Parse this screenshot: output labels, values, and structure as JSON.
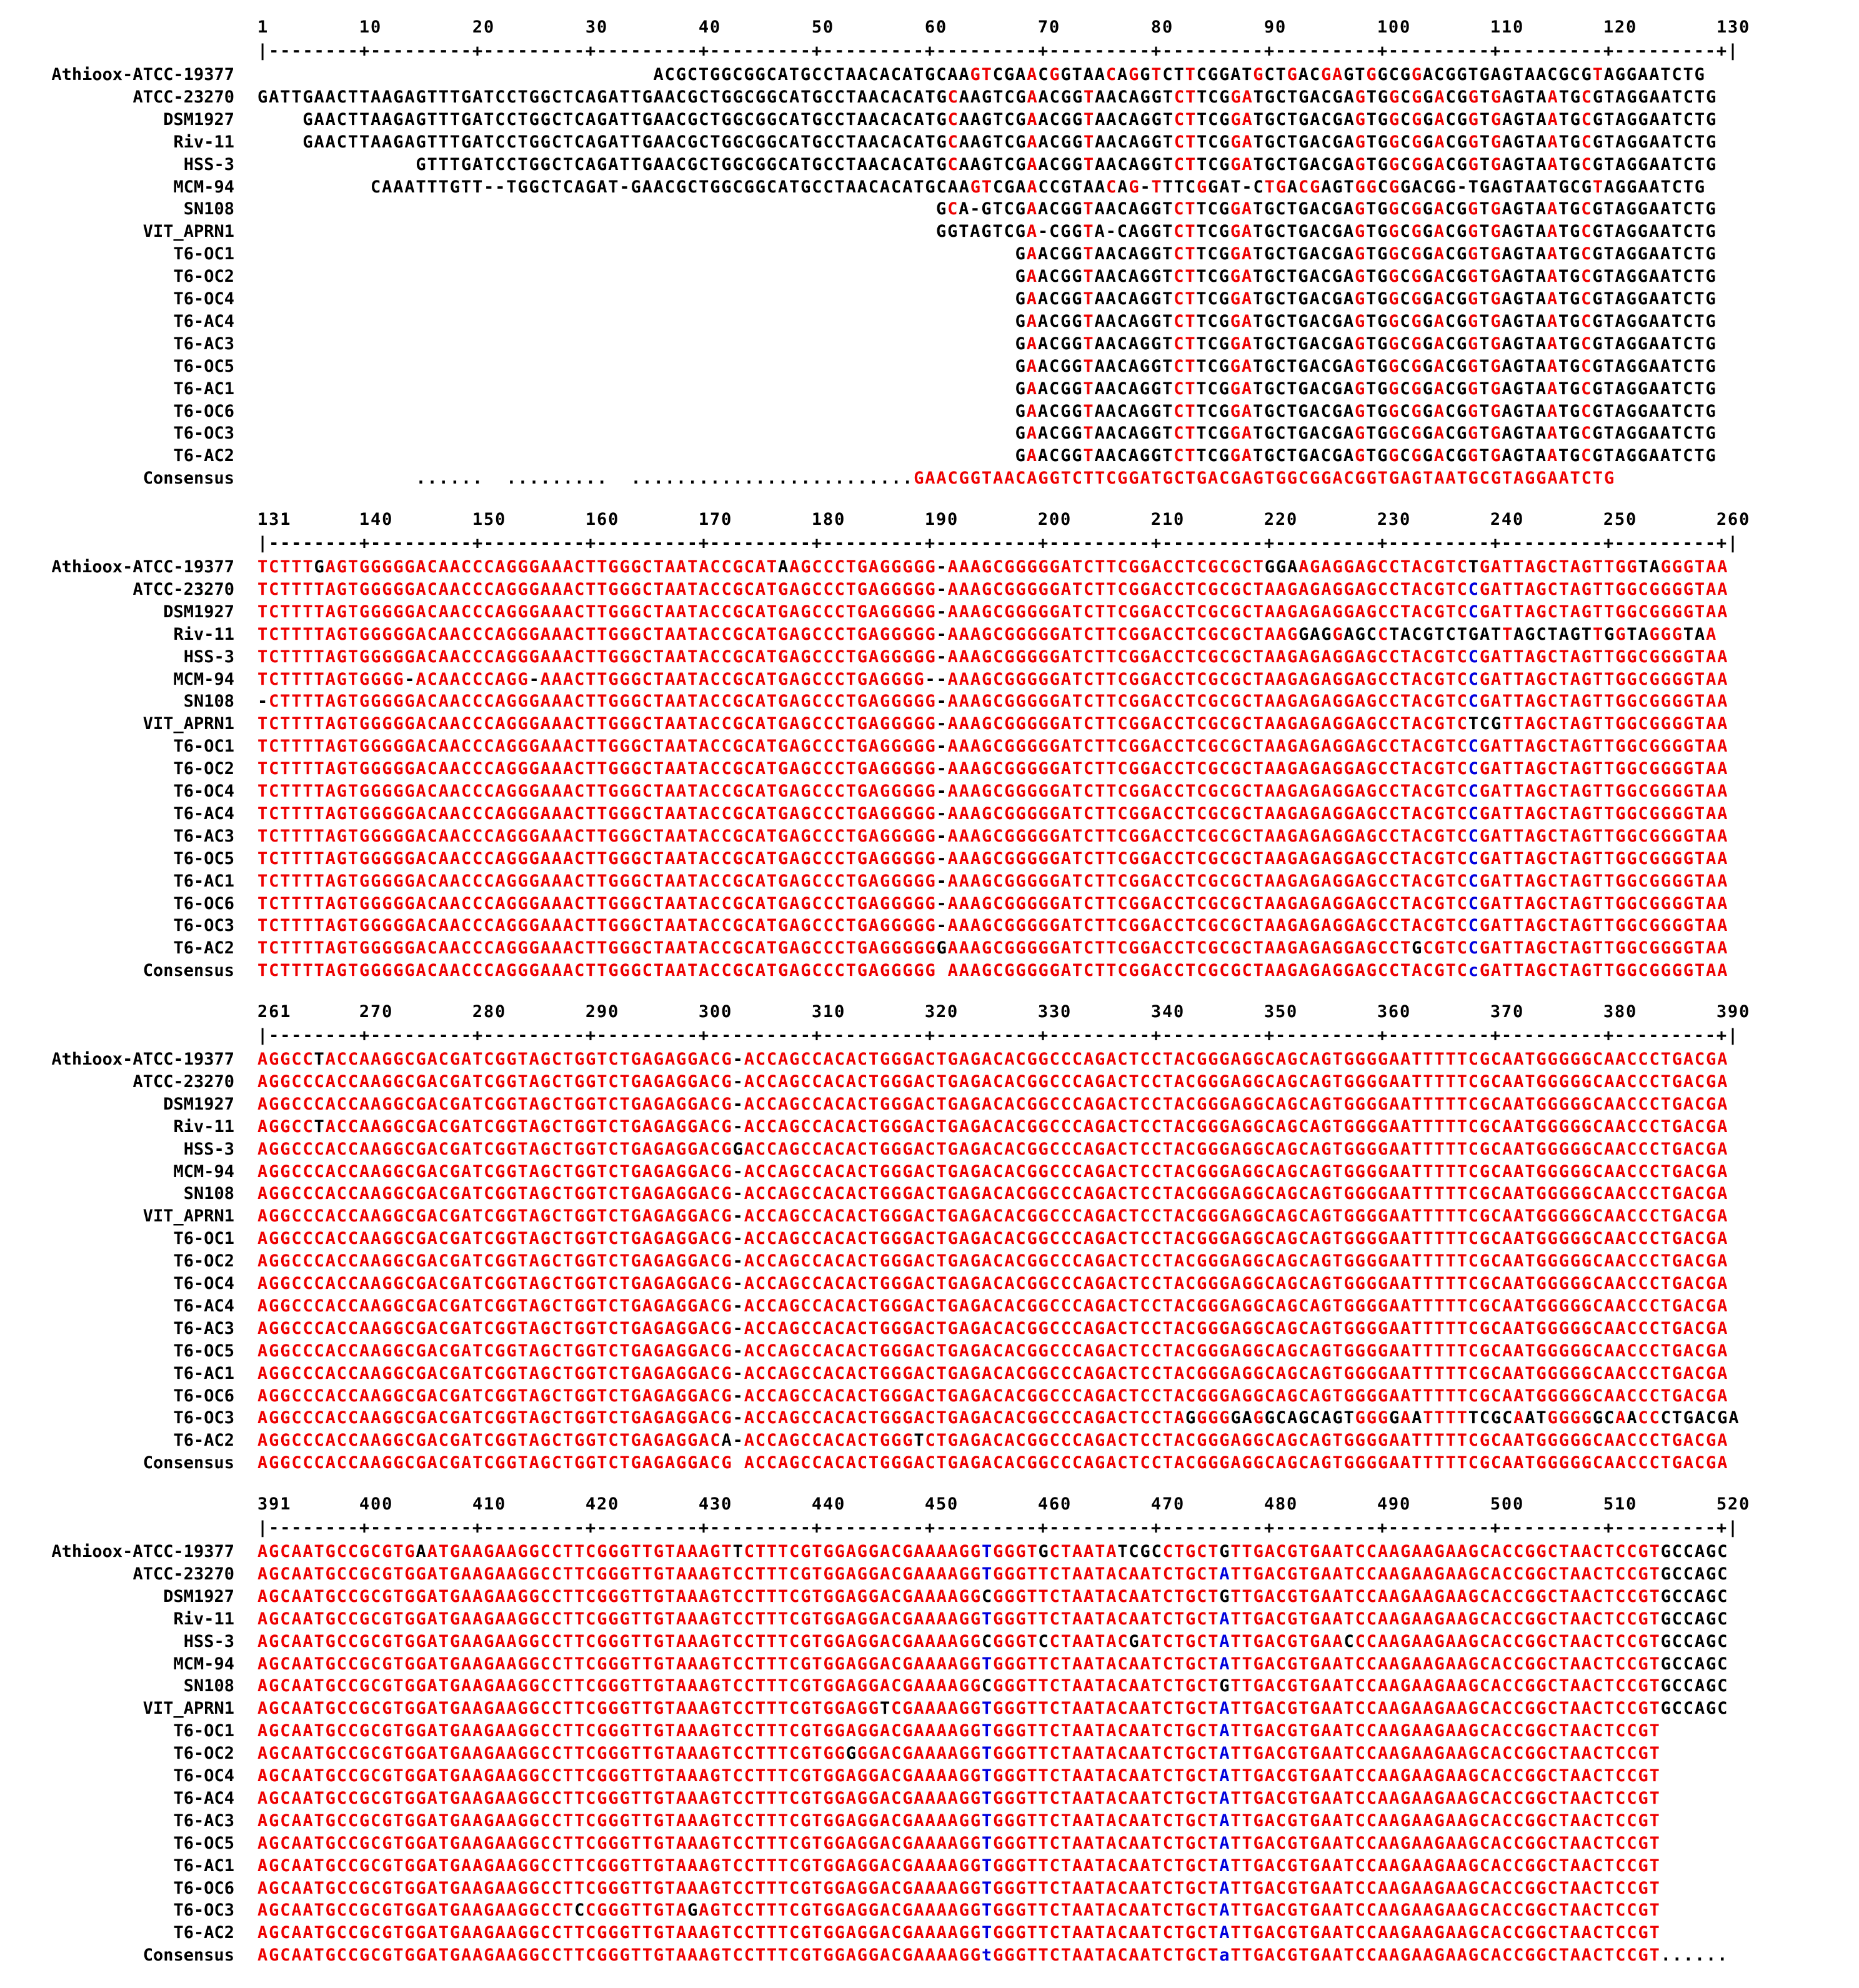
{
  "colors": {
    "high_consensus": "#ee0000",
    "low_consensus": "#0000dd",
    "neutral": "#000000"
  },
  "alignment": {
    "blocks": [
      {
        "ruler_numbers": "1        10        20        30        40        50        60        70        80        90        100       110       120       130",
        "ruler_line": "|--------+---------+---------+---------+---------+---------+---------+---------+---------+---------+---------+---------+---------+|",
        "rows": [
          {
            "name": "Athioox-ATCC-19377",
            "seq": "                                   ACGCTGGCGGCATGCCTAACACATGCAAGTCGAACGGTAACAGGTCTTCGGATGCTGACGAGTGGCGGACGGTGAGTAACGCGTAGGAATCTG"
          },
          {
            "name": "ATCC-23270",
            "seq": "GATTGAACTTAAGAGTTTGATCCTGGCTCAGATTGAACGCTGGCGGCATGCCTAACACATGCAAGTCGAACGGTAACAGGTCTTCGGATGCTGACGAGTGGCGGACGGTGAGTAATGCGTAGGAATCTG"
          },
          {
            "name": "DSM1927",
            "seq": "    GAACTTAAGAGTTTGATCCTGGCTCAGATTGAACGCTGGCGGCATGCCTAACACATGCAAGTCGAACGGTAACAGGTCTTCGGATGCTGACGAGTGGCGGACGGTGAGTAATGCGTAGGAATCTG"
          },
          {
            "name": "Riv-11",
            "seq": "    GAACTTAAGAGTTTGATCCTGGCTCAGATTGAACGCTGGCGGCATGCCTAACACATGCAAGTCGAACGGTAACAGGTCTTCGGATGCTGACGAGTGGCGGACGGTGAGTAATGCGTAGGAATCTG"
          },
          {
            "name": "HSS-3",
            "seq": "              GTTTGATCCTGGCTCAGATTGAACGCTGGCGGCATGCCTAACACATGCAAGTCGAACGGTAACAGGTCTTCGGATGCTGACGAGTGGCGGACGGTGAGTAATGCGTAGGAATCTG"
          },
          {
            "name": "MCM-94",
            "seq": "          CAAATTTGTT--TGGCTCAGAT-GAACGCTGGCGGCATGCCTAACACATGCAAGTCGAACCGTAACAG-TTTCGGAT-CTGACGAGTGGCGGACGG-TGAGTAATGCGTAGGAATCTG"
          },
          {
            "name": "SN108",
            "seq": "                                                            GCA-GTCGAACGGTAACAGGTCTTCGGATGCTGACGAGTGGCGGACGGTGAGTAATGCGTAGGAATCTG"
          },
          {
            "name": "VIT_APRN1",
            "seq": "                                                            GGTAGTCGA-CGGTA-CAGGTCTTCGGATGCTGACGAGTGGCGGACGGTGAGTAATGCGTAGGAATCTG"
          },
          {
            "name": "T6-OC1",
            "seq": "                                                                   GAACGGTAACAGGTCTTCGGATGCTGACGAGTGGCGGACGGTGAGTAATGCGTAGGAATCTG"
          },
          {
            "name": "T6-OC2",
            "seq": "                                                                   GAACGGTAACAGGTCTTCGGATGCTGACGAGTGGCGGACGGTGAGTAATGCGTAGGAATCTG"
          },
          {
            "name": "T6-OC4",
            "seq": "                                                                   GAACGGTAACAGGTCTTCGGATGCTGACGAGTGGCGGACGGTGAGTAATGCGTAGGAATCTG"
          },
          {
            "name": "T6-AC4",
            "seq": "                                                                   GAACGGTAACAGGTCTTCGGATGCTGACGAGTGGCGGACGGTGAGTAATGCGTAGGAATCTG"
          },
          {
            "name": "T6-AC3",
            "seq": "                                                                   GAACGGTAACAGGTCTTCGGATGCTGACGAGTGGCGGACGGTGAGTAATGCGTAGGAATCTG"
          },
          {
            "name": "T6-OC5",
            "seq": "                                                                   GAACGGTAACAGGTCTTCGGATGCTGACGAGTGGCGGACGGTGAGTAATGCGTAGGAATCTG"
          },
          {
            "name": "T6-AC1",
            "seq": "                                                                   GAACGGTAACAGGTCTTCGGATGCTGACGAGTGGCGGACGGTGAGTAATGCGTAGGAATCTG"
          },
          {
            "name": "T6-OC6",
            "seq": "                                                                   GAACGGTAACAGGTCTTCGGATGCTGACGAGTGGCGGACGGTGAGTAATGCGTAGGAATCTG"
          },
          {
            "name": "T6-OC3",
            "seq": "                                                                   GAACGGTAACAGGTCTTCGGATGCTGACGAGTGGCGGACGGTGAGTAATGCGTAGGAATCTG"
          },
          {
            "name": "T6-AC2",
            "seq": "                                                                   GAACGGTAACAGGTCTTCGGATGCTGACGAGTGGCGGACGGTGAGTAATGCGTAGGAATCTG"
          },
          {
            "name": "Consensus",
            "seq": "              ......  .........  .........................GAACGGTAACAGGTCTTCGGATGCTGACGAGTGGCGGACGGTGAGTAATGCGTAGGAATCTG"
          }
        ]
      },
      {
        "ruler_numbers": "131      140       150       160       170       180       190       200       210       220       230       240       250       260",
        "ruler_line": "|--------+---------+---------+---------+---------+---------+---------+---------+---------+---------+---------+---------+---------+|",
        "rows": [
          {
            "name": "Athioox-ATCC-19377",
            "seq": "TCTTTGAGTGGGGGACAACCCAGGGAAACTTGGGCTAATACCGCATAAGCCCTGAGGGGG-AAAGCGGGGGATCTTCGGACCTCGCGCTGGAAGAGGAGCCTACGTCTGATTAGCTAGTTGGTAGGGTAA"
          },
          {
            "name": "ATCC-23270",
            "seq": "TCTTTTAGTGGGGGACAACCCAGGGAAACTTGGGCTAATACCGCATGAGCCCTGAGGGGG-AAAGCGGGGGATCTTCGGACCTCGCGCTAAGAGAGGAGCCTACGTCCGATTAGCTAGTTGGCGGGGTAA"
          },
          {
            "name": "DSM1927",
            "seq": "TCTTTTAGTGGGGGACAACCCAGGGAAACTTGGGCTAATACCGCATGAGCCCTGAGGGGG-AAAGCGGGGGATCTTCGGACCTCGCGCTAAGAGAGGAGCCTACGTCCGATTAGCTAGTTGGCGGGGTAA"
          },
          {
            "name": "Riv-11",
            "seq": "TCTTTTAGTGGGGGACAACCCAGGGAAACTTGGGCTAATACCGCATGAGCCCTGAGGGGG-AAAGCGGGGGATCTTCGGACCTCGCGCTAAGGAGGAGCCTACGTCTGATTAGCTAGTTGGTAGGGTAA"
          },
          {
            "name": "HSS-3",
            "seq": "TCTTTTAGTGGGGGACAACCCAGGGAAACTTGGGCTAATACCGCATGAGCCCTGAGGGGG-AAAGCGGGGGATCTTCGGACCTCGCGCTAAGAGAGGAGCCTACGTCCGATTAGCTAGTTGGCGGGGTAA"
          },
          {
            "name": "MCM-94",
            "seq": "TCTTTTAGTGGGG-ACAACCCAGG-AAACTTGGGCTAATACCGCATGAGCCCTGAGGGG--AAAGCGGGGGATCTTCGGACCTCGCGCTAAGAGAGGAGCCTACGTCCGATTAGCTAGTTGGCGGGGTAA"
          },
          {
            "name": "SN108",
            "seq": "-CTTTTAGTGGGGGACAACCCAGGGAAACTTGGGCTAATACCGCATGAGCCCTGAGGGGG-AAAGCGGGGGATCTTCGGACCTCGCGCTAAGAGAGGAGCCTACGTCCGATTAGCTAGTTGGCGGGGTAA"
          },
          {
            "name": "VIT_APRN1",
            "seq": "TCTTTTAGTGGGGGACAACCCAGGGAAACTTGGGCTAATACCGCATGAGCCCTGAGGGGG-AAAGCGGGGGATCTTCGGACCTCGCGCTAAGAGAGGAGCCTACGTCTCGTTAGCTAGTTGGCGGGGTAA"
          },
          {
            "name": "T6-OC1",
            "seq": "TCTTTTAGTGGGGGACAACCCAGGGAAACTTGGGCTAATACCGCATGAGCCCTGAGGGGG-AAAGCGGGGGATCTTCGGACCTCGCGCTAAGAGAGGAGCCTACGTCCGATTAGCTAGTTGGCGGGGTAA"
          },
          {
            "name": "T6-OC2",
            "seq": "TCTTTTAGTGGGGGACAACCCAGGGAAACTTGGGCTAATACCGCATGAGCCCTGAGGGGG-AAAGCGGGGGATCTTCGGACCTCGCGCTAAGAGAGGAGCCTACGTCCGATTAGCTAGTTGGCGGGGTAA"
          },
          {
            "name": "T6-OC4",
            "seq": "TCTTTTAGTGGGGGACAACCCAGGGAAACTTGGGCTAATACCGCATGAGCCCTGAGGGGG-AAAGCGGGGGATCTTCGGACCTCGCGCTAAGAGAGGAGCCTACGTCCGATTAGCTAGTTGGCGGGGTAA"
          },
          {
            "name": "T6-AC4",
            "seq": "TCTTTTAGTGGGGGACAACCCAGGGAAACTTGGGCTAATACCGCATGAGCCCTGAGGGGG-AAAGCGGGGGATCTTCGGACCTCGCGCTAAGAGAGGAGCCTACGTCCGATTAGCTAGTTGGCGGGGTAA"
          },
          {
            "name": "T6-AC3",
            "seq": "TCTTTTAGTGGGGGACAACCCAGGGAAACTTGGGCTAATACCGCATGAGCCCTGAGGGGG-AAAGCGGGGGATCTTCGGACCTCGCGCTAAGAGAGGAGCCTACGTCCGATTAGCTAGTTGGCGGGGTAA"
          },
          {
            "name": "T6-OC5",
            "seq": "TCTTTTAGTGGGGGACAACCCAGGGAAACTTGGGCTAATACCGCATGAGCCCTGAGGGGG-AAAGCGGGGGATCTTCGGACCTCGCGCTAAGAGAGGAGCCTACGTCCGATTAGCTAGTTGGCGGGGTAA"
          },
          {
            "name": "T6-AC1",
            "seq": "TCTTTTAGTGGGGGACAACCCAGGGAAACTTGGGCTAATACCGCATGAGCCCTGAGGGGG-AAAGCGGGGGATCTTCGGACCTCGCGCTAAGAGAGGAGCCTACGTCCGATTAGCTAGTTGGCGGGGTAA"
          },
          {
            "name": "T6-OC6",
            "seq": "TCTTTTAGTGGGGGACAACCCAGGGAAACTTGGGCTAATACCGCATGAGCCCTGAGGGGG-AAAGCGGGGGATCTTCGGACCTCGCGCTAAGAGAGGAGCCTACGTCCGATTAGCTAGTTGGCGGGGTAA"
          },
          {
            "name": "T6-OC3",
            "seq": "TCTTTTAGTGGGGGACAACCCAGGGAAACTTGGGCTAATACCGCATGAGCCCTGAGGGGG-AAAGCGGGGGATCTTCGGACCTCGCGCTAAGAGAGGAGCCTACGTCCGATTAGCTAGTTGGCGGGGTAA"
          },
          {
            "name": "T6-AC2",
            "seq": "TCTTTTAGTGGGGGACAACCCAGGGAAACTTGGGCTAATACCGCATGAGCCCTGAGGGGGGAAAGCGGGGGATCTTCGGACCTCGCGCTAAGAGAGGAGCCTGCGTCCGATTAGCTAGTTGGCGGGGTAA"
          },
          {
            "name": "Consensus",
            "seq": "TCTTTTAGTGGGGGACAACCCAGGGAAACTTGGGCTAATACCGCATGAGCCCTGAGGGGG AAAGCGGGGGATCTTCGGACCTCGCGCTAAGAGAGGAGCCTACGTCcGATTAGCTAGTTGGCGGGGTAA"
          }
        ]
      },
      {
        "ruler_numbers": "261      270       280       290       300       310       320       330       340       350       360       370       380       390",
        "ruler_line": "|--------+---------+---------+---------+---------+---------+---------+---------+---------+---------+---------+---------+---------+|",
        "rows": [
          {
            "name": "Athioox-ATCC-19377",
            "seq": "AGGCCTACCAAGGCGACGATCGGTAGCTGGTCTGAGAGGACG-ACCAGCCACACTGGGACTGAGACACGGCCCAGACTCCTACGGGAGGCAGCAGTGGGGAATTTTTCGCAATGGGGGCAACCCTGACGA"
          },
          {
            "name": "ATCC-23270",
            "seq": "AGGCCCACCAAGGCGACGATCGGTAGCTGGTCTGAGAGGACG-ACCAGCCACACTGGGACTGAGACACGGCCCAGACTCCTACGGGAGGCAGCAGTGGGGAATTTTTCGCAATGGGGGCAACCCTGACGA"
          },
          {
            "name": "DSM1927",
            "seq": "AGGCCCACCAAGGCGACGATCGGTAGCTGGTCTGAGAGGACG-ACCAGCCACACTGGGACTGAGACACGGCCCAGACTCCTACGGGAGGCAGCAGTGGGGAATTTTTCGCAATGGGGGCAACCCTGACGA"
          },
          {
            "name": "Riv-11",
            "seq": "AGGCCTACCAAGGCGACGATCGGTAGCTGGTCTGAGAGGACG-ACCAGCCACACTGGGACTGAGACACGGCCCAGACTCCTACGGGAGGCAGCAGTGGGGAATTTTTCGCAATGGGGGCAACCCTGACGA"
          },
          {
            "name": "HSS-3",
            "seq": "AGGCCCACCAAGGCGACGATCGGTAGCTGGTCTGAGAGGACGGACCAGCCACACTGGGACTGAGACACGGCCCAGACTCCTACGGGAGGCAGCAGTGGGGAATTTTTCGCAATGGGGGCAACCCTGACGA"
          },
          {
            "name": "MCM-94",
            "seq": "AGGCCCACCAAGGCGACGATCGGTAGCTGGTCTGAGAGGACG-ACCAGCCACACTGGGACTGAGACACGGCCCAGACTCCTACGGGAGGCAGCAGTGGGGAATTTTTCGCAATGGGGGCAACCCTGACGA"
          },
          {
            "name": "SN108",
            "seq": "AGGCCCACCAAGGCGACGATCGGTAGCTGGTCTGAGAGGACG-ACCAGCCACACTGGGACTGAGACACGGCCCAGACTCCTACGGGAGGCAGCAGTGGGGAATTTTTCGCAATGGGGGCAACCCTGACGA"
          },
          {
            "name": "VIT_APRN1",
            "seq": "AGGCCCACCAAGGCGACGATCGGTAGCTGGTCTGAGAGGACG-ACCAGCCACACTGGGACTGAGACACGGCCCAGACTCCTACGGGAGGCAGCAGTGGGGAATTTTTCGCAATGGGGGCAACCCTGACGA"
          },
          {
            "name": "T6-OC1",
            "seq": "AGGCCCACCAAGGCGACGATCGGTAGCTGGTCTGAGAGGACG-ACCAGCCACACTGGGACTGAGACACGGCCCAGACTCCTACGGGAGGCAGCAGTGGGGAATTTTTCGCAATGGGGGCAACCCTGACGA"
          },
          {
            "name": "T6-OC2",
            "seq": "AGGCCCACCAAGGCGACGATCGGTAGCTGGTCTGAGAGGACG-ACCAGCCACACTGGGACTGAGACACGGCCCAGACTCCTACGGGAGGCAGCAGTGGGGAATTTTTCGCAATGGGGGCAACCCTGACGA"
          },
          {
            "name": "T6-OC4",
            "seq": "AGGCCCACCAAGGCGACGATCGGTAGCTGGTCTGAGAGGACG-ACCAGCCACACTGGGACTGAGACACGGCCCAGACTCCTACGGGAGGCAGCAGTGGGGAATTTTTCGCAATGGGGGCAACCCTGACGA"
          },
          {
            "name": "T6-AC4",
            "seq": "AGGCCCACCAAGGCGACGATCGGTAGCTGGTCTGAGAGGACG-ACCAGCCACACTGGGACTGAGACACGGCCCAGACTCCTACGGGAGGCAGCAGTGGGGAATTTTTCGCAATGGGGGCAACCCTGACGA"
          },
          {
            "name": "T6-AC3",
            "seq": "AGGCCCACCAAGGCGACGATCGGTAGCTGGTCTGAGAGGACG-ACCAGCCACACTGGGACTGAGACACGGCCCAGACTCCTACGGGAGGCAGCAGTGGGGAATTTTTCGCAATGGGGGCAACCCTGACGA"
          },
          {
            "name": "T6-OC5",
            "seq": "AGGCCCACCAAGGCGACGATCGGTAGCTGGTCTGAGAGGACG-ACCAGCCACACTGGGACTGAGACACGGCCCAGACTCCTACGGGAGGCAGCAGTGGGGAATTTTTCGCAATGGGGGCAACCCTGACGA"
          },
          {
            "name": "T6-AC1",
            "seq": "AGGCCCACCAAGGCGACGATCGGTAGCTGGTCTGAGAGGACG-ACCAGCCACACTGGGACTGAGACACGGCCCAGACTCCTACGGGAGGCAGCAGTGGGGAATTTTTCGCAATGGGGGCAACCCTGACGA"
          },
          {
            "name": "T6-OC6",
            "seq": "AGGCCCACCAAGGCGACGATCGGTAGCTGGTCTGAGAGGACG-ACCAGCCACACTGGGACTGAGACACGGCCCAGACTCCTACGGGAGGCAGCAGTGGGGAATTTTTCGCAATGGGGGCAACCCTGACGA"
          },
          {
            "name": "T6-OC3",
            "seq": "AGGCCCACCAAGGCGACGATCGGTAGCTGGTCTGAGAGGACG-ACCAGCCACACTGGGACTGAGACACGGCCCAGACTCCTAGGGGGAGGCAGCAGTGGGGAATTTTTCGCAATGGGGGCAACCCTGACGA"
          },
          {
            "name": "T6-AC2",
            "seq": "AGGCCCACCAAGGCGACGATCGGTAGCTGGTCTGAGAGGACA-ACCAGCCACACTGGGTCTGAGACACGGCCCAGACTCCTACGGGAGGCAGCAGTGGGGAATTTTTCGCAATGGGGGCAACCCTGACGA"
          },
          {
            "name": "Consensus",
            "seq": "AGGCCCACCAAGGCGACGATCGGTAGCTGGTCTGAGAGGACG ACCAGCCACACTGGGACTGAGACACGGCCCAGACTCCTACGGGAGGCAGCAGTGGGGAATTTTTCGCAATGGGGGCAACCCTGACGA"
          }
        ]
      },
      {
        "ruler_numbers": "391      400       410       420       430       440       450       460       470       480       490       500       510       520",
        "ruler_line": "|--------+---------+---------+---------+---------+---------+---------+---------+---------+---------+---------+---------+---------+|",
        "rows": [
          {
            "name": "Athioox-ATCC-19377",
            "seq": "AGCAATGCCGCGTGAATGAAGAAGGCCTTCGGGTTGTAAAGTTCTTTCGTGGAGGACGAAAAGGTGGGTGCTAATATCGCCTGCTGTTGACGTGAATCCAAGAAGAAGCACCGGCTAACTCCGTGCCAGC"
          },
          {
            "name": "ATCC-23270",
            "seq": "AGCAATGCCGCGTGGATGAAGAAGGCCTTCGGGTTGTAAAGTCCTTTCGTGGAGGACGAAAAGGTGGGTTCTAATACAATCTGCTATTGACGTGAATCCAAGAAGAAGCACCGGCTAACTCCGTGCCAGC"
          },
          {
            "name": "DSM1927",
            "seq": "AGCAATGCCGCGTGGATGAAGAAGGCCTTCGGGTTGTAAAGTCCTTTCGTGGAGGACGAAAAGGCGGGTTCTAATACAATCTGCTGTTGACGTGAATCCAAGAAGAAGCACCGGCTAACTCCGTGCCAGC"
          },
          {
            "name": "Riv-11",
            "seq": "AGCAATGCCGCGTGGATGAAGAAGGCCTTCGGGTTGTAAAGTCCTTTCGTGGAGGACGAAAAGGTGGGTTCTAATACAATCTGCTATTGACGTGAATCCAAGAAGAAGCACCGGCTAACTCCGTGCCAGC"
          },
          {
            "name": "HSS-3",
            "seq": "AGCAATGCCGCGTGGATGAAGAAGGCCTTCGGGTTGTAAAGTCCTTTCGTGGAGGACGAAAAGGCGGGTCCTAATACGATCTGCTATTGACGTGAACCCAAGAAGAAGCACCGGCTAACTCCGTGCCAGC"
          },
          {
            "name": "MCM-94",
            "seq": "AGCAATGCCGCGTGGATGAAGAAGGCCTTCGGGTTGTAAAGTCCTTTCGTGGAGGACGAAAAGGTGGGTTCTAATACAATCTGCTATTGACGTGAATCCAAGAAGAAGCACCGGCTAACTCCGTGCCAGC"
          },
          {
            "name": "SN108",
            "seq": "AGCAATGCCGCGTGGATGAAGAAGGCCTTCGGGTTGTAAAGTCCTTTCGTGGAGGACGAAAAGGCGGGTTCTAATACAATCTGCTGTTGACGTGAATCCAAGAAGAAGCACCGGCTAACTCCGTGCCAGC"
          },
          {
            "name": "VIT_APRN1",
            "seq": "AGCAATGCCGCGTGGATGAAGAAGGCCTTCGGGTTGTAAAGTCCTTTCGTGGAGGTCGAAAAGGTGGGTTCTAATACAATCTGCTATTGACGTGAATCCAAGAAGAAGCACCGGCTAACTCCGTGCCAGC"
          },
          {
            "name": "T6-OC1",
            "seq": "AGCAATGCCGCGTGGATGAAGAAGGCCTTCGGGTTGTAAAGTCCTTTCGTGGAGGACGAAAAGGTGGGTTCTAATACAATCTGCTATTGACGTGAATCCAAGAAGAAGCACCGGCTAACTCCGT"
          },
          {
            "name": "T6-OC2",
            "seq": "AGCAATGCCGCGTGGATGAAGAAGGCCTTCGGGTTGTAAAGTCCTTTCGTGGGGGACGAAAAGGTGGGTTCTAATACAATCTGCTATTGACGTGAATCCAAGAAGAAGCACCGGCTAACTCCGT"
          },
          {
            "name": "T6-OC4",
            "seq": "AGCAATGCCGCGTGGATGAAGAAGGCCTTCGGGTTGTAAAGTCCTTTCGTGGAGGACGAAAAGGTGGGTTCTAATACAATCTGCTATTGACGTGAATCCAAGAAGAAGCACCGGCTAACTCCGT"
          },
          {
            "name": "T6-AC4",
            "seq": "AGCAATGCCGCGTGGATGAAGAAGGCCTTCGGGTTGTAAAGTCCTTTCGTGGAGGACGAAAAGGTGGGTTCTAATACAATCTGCTATTGACGTGAATCCAAGAAGAAGCACCGGCTAACTCCGT"
          },
          {
            "name": "T6-AC3",
            "seq": "AGCAATGCCGCGTGGATGAAGAAGGCCTTCGGGTTGTAAAGTCCTTTCGTGGAGGACGAAAAGGTGGGTTCTAATACAATCTGCTATTGACGTGAATCCAAGAAGAAGCACCGGCTAACTCCGT"
          },
          {
            "name": "T6-OC5",
            "seq": "AGCAATGCCGCGTGGATGAAGAAGGCCTTCGGGTTGTAAAGTCCTTTCGTGGAGGACGAAAAGGTGGGTTCTAATACAATCTGCTATTGACGTGAATCCAAGAAGAAGCACCGGCTAACTCCGT"
          },
          {
            "name": "T6-AC1",
            "seq": "AGCAATGCCGCGTGGATGAAGAAGGCCTTCGGGTTGTAAAGTCCTTTCGTGGAGGACGAAAAGGTGGGTTCTAATACAATCTGCTATTGACGTGAATCCAAGAAGAAGCACCGGCTAACTCCGT"
          },
          {
            "name": "T6-OC6",
            "seq": "AGCAATGCCGCGTGGATGAAGAAGGCCTTCGGGTTGTAAAGTCCTTTCGTGGAGGACGAAAAGGTGGGTTCTAATACAATCTGCTATTGACGTGAATCCAAGAAGAAGCACCGGCTAACTCCGT"
          },
          {
            "name": "T6-OC3",
            "seq": "AGCAATGCCGCGTGGATGAAGAAGGCCTCCGGGTTGTAGAGTCCTTTCGTGGAGGACGAAAAGGTGGGTTCTAATACAATCTGCTATTGACGTGAATCCAAGAAGAAGCACCGGCTAACTCCGT"
          },
          {
            "name": "T6-AC2",
            "seq": "AGCAATGCCGCGTGGATGAAGAAGGCCTTCGGGTTGTAAAGTCCTTTCGTGGAGGACGAAAAGGTGGGTTCTAATACAATCTGCTATTGACGTGAATCCAAGAAGAAGCACCGGCTAACTCCGT"
          },
          {
            "name": "Consensus",
            "seq": "AGCAATGCCGCGTGGATGAAGAAGGCCTTCGGGTTGTAAAGTCCTTTCGTGGAGGACGAAAAGGtGGGTTCTAATACAATCTGCTaTTGACGTGAATCCAAGAAGAAGCACCGGCTAACTCCGT......"
          }
        ]
      }
    ]
  }
}
